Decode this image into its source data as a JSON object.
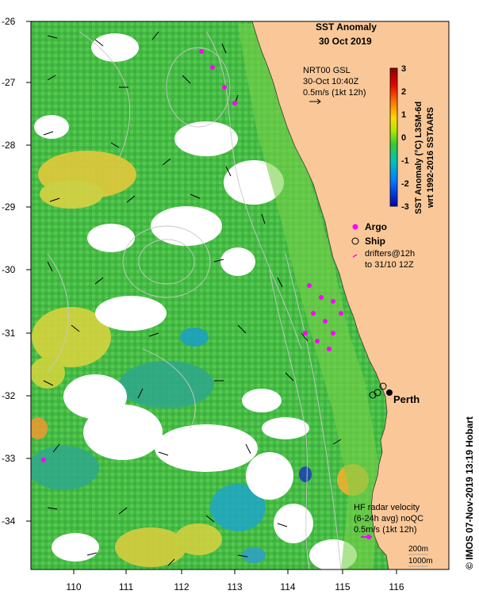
{
  "title": {
    "line1": "SST Anomaly",
    "line2": "30 Oct 2019"
  },
  "currents_note": {
    "line1": "NRT00 GSL",
    "line2": "30-Oct 10:40Z",
    "line3": "0.5m/s (1kt 12h)"
  },
  "colorbar": {
    "label_line1": "SST Anomaly (°C) L3SM-6d",
    "label_line2": "wrt 1992-2016 SSTAARS",
    "ticks": [
      "3",
      "2",
      "1",
      "0",
      "-1",
      "-2",
      "-3"
    ],
    "colors": [
      "#8b0000",
      "#e60000",
      "#ff7a00",
      "#ffd700",
      "#b4e600",
      "#32cd32",
      "#00c0c0",
      "#0078ff",
      "#0000b4"
    ]
  },
  "legend": {
    "argo": "Argo",
    "ship": "Ship",
    "drifters_line1": "drifters@12h",
    "drifters_line2": "to 31/10 12Z"
  },
  "city": "Perth",
  "hf_note": {
    "line1": "HF radar velocity",
    "line2": "(6-24h avg) noQC",
    "line3": "0.5m/s (1kt 12h)"
  },
  "isobaths": {
    "a": "200m",
    "b": "1000m"
  },
  "credit": "© IMOS 07-Nov-2019 13:19 Hobart",
  "axes": {
    "y_ticks": [
      "-26",
      "-27",
      "-28",
      "-29",
      "-30",
      "-31",
      "-32",
      "-33",
      "-34"
    ],
    "x_ticks": [
      "110",
      "111",
      "112",
      "113",
      "114",
      "115",
      "116"
    ]
  },
  "colors": {
    "land": "#fac898",
    "ocean_base": "#4cc34c",
    "warm": "#e6d23c",
    "cool": "#34b39a",
    "cloud": "#ffffff",
    "argo": "#ff00ff"
  }
}
